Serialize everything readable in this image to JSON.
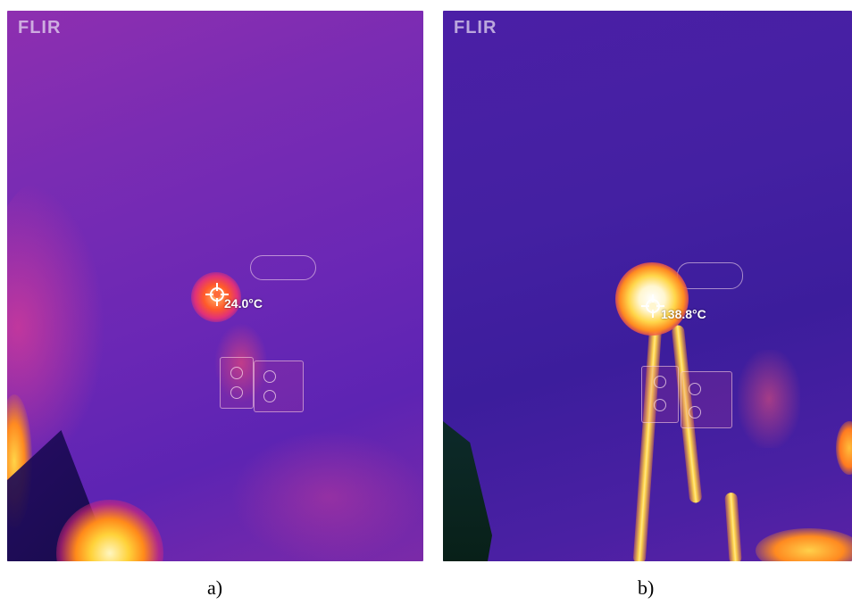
{
  "panels": [
    {
      "id": "a",
      "logo_text": "FLIR",
      "spot_temperature": "24.0°C",
      "caption": "a)"
    },
    {
      "id": "b",
      "logo_text": "FLIR",
      "spot_temperature": "138.8°C",
      "caption": "b)"
    }
  ],
  "colors": {
    "palette": "iron",
    "cold": "#3c1d9c",
    "warm": "#e0307a",
    "hot": "#ffd34a",
    "hottest": "#ffffff"
  }
}
